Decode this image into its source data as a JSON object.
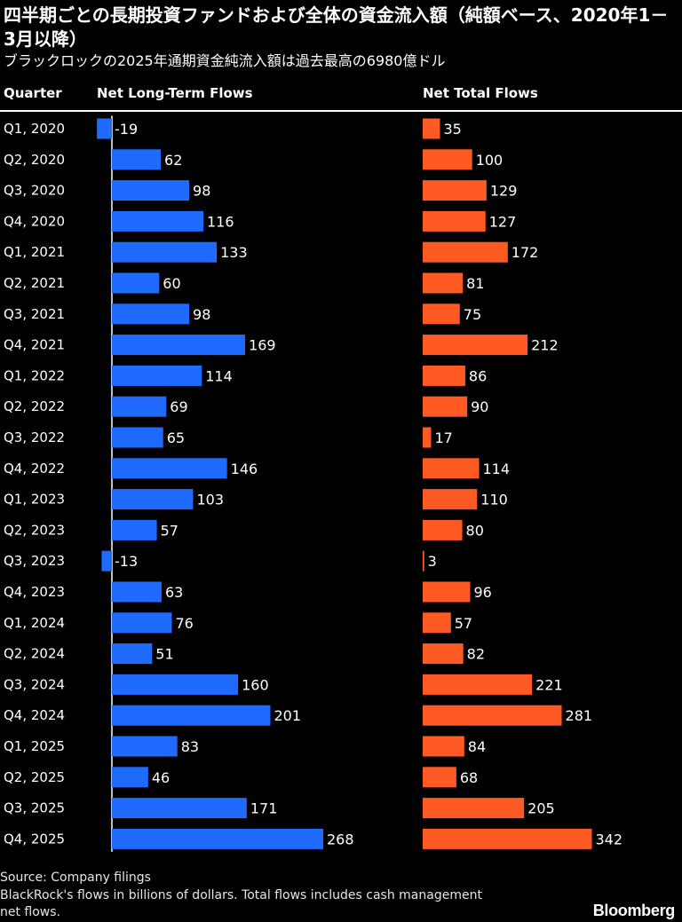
{
  "title": "四半期ごとの長期投資ファンドおよび全体の資金流入額（純額ベース、2020年1－3月以降）",
  "subtitle": "ブラックロックの2025年通期資金純流入額は過去最高の6980億ドル",
  "chart_data": {
    "type": "bar",
    "orientation": "horizontal",
    "column_header": "Quarter",
    "categories": [
      "Q1, 2020",
      "Q2, 2020",
      "Q3, 2020",
      "Q4, 2020",
      "Q1, 2021",
      "Q2, 2021",
      "Q3, 2021",
      "Q4, 2021",
      "Q1, 2022",
      "Q2, 2022",
      "Q3, 2022",
      "Q4, 2022",
      "Q1, 2023",
      "Q2, 2023",
      "Q3, 2023",
      "Q4, 2023",
      "Q1, 2024",
      "Q2, 2024",
      "Q3, 2024",
      "Q4, 2024",
      "Q1, 2025",
      "Q2, 2025",
      "Q3, 2025",
      "Q4, 2025"
    ],
    "series": [
      {
        "name": "Net Long-Term Flows",
        "color": "#1f6bff",
        "values": [
          -19,
          62,
          98,
          116,
          133,
          60,
          98,
          169,
          114,
          69,
          65,
          146,
          103,
          57,
          -13,
          63,
          76,
          51,
          160,
          201,
          83,
          46,
          171,
          268
        ]
      },
      {
        "name": "Net Total Flows",
        "color": "#ff5a24",
        "values": [
          35,
          100,
          129,
          127,
          172,
          81,
          75,
          212,
          86,
          90,
          17,
          114,
          110,
          80,
          3,
          96,
          57,
          82,
          221,
          281,
          84,
          68,
          205,
          342
        ]
      }
    ]
  },
  "footer": {
    "source": "Source: Company filings",
    "note": "BlackRock's flows in billions of dollars. Total flows includes cash management net flows."
  },
  "brand": "Bloomberg"
}
